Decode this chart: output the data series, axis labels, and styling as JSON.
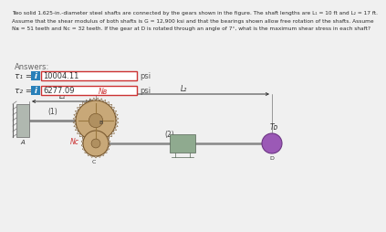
{
  "bg_color": "#f0f0f0",
  "text_color": "#2c2c2c",
  "answer_text_color": "#555555",
  "info_btn_color": "#2980b9",
  "box_border_color": "#cc3333",
  "box_fill_color": "#ffffff",
  "answers_label": "Answers:",
  "tau1_label": "τ₁ =",
  "tau2_label": "τ₂ =",
  "tau1_value": "10004.11",
  "tau2_value": "6277.09",
  "unit": "psi",
  "label_L1": "L₁",
  "label_L2": "L₂",
  "label_NB": "Nʙ",
  "label_NC": "Nᴄ",
  "label_1": "(1)",
  "label_2": "(2)",
  "label_A": "A",
  "label_B": "B",
  "label_C": "C",
  "label_D": "D",
  "label_TD": "Tᴅ",
  "title_line1": "Two solid 1.625-in.-diameter steel shafts are connected by the gears shown in the figure. The shaft lengths are L₁ = 10 ft and L₂ = 17 ft.",
  "title_line2": "Assume that the shear modulus of both shafts is G = 12,900 ksi and that the bearings shown allow free rotation of the shafts. Assume",
  "title_line3": "Nʙ = 51 teeth and Nᴄ = 32 teeth. If the gear at D is rotated through an angle of 7°, what is the maximum shear stress in each shaft?"
}
